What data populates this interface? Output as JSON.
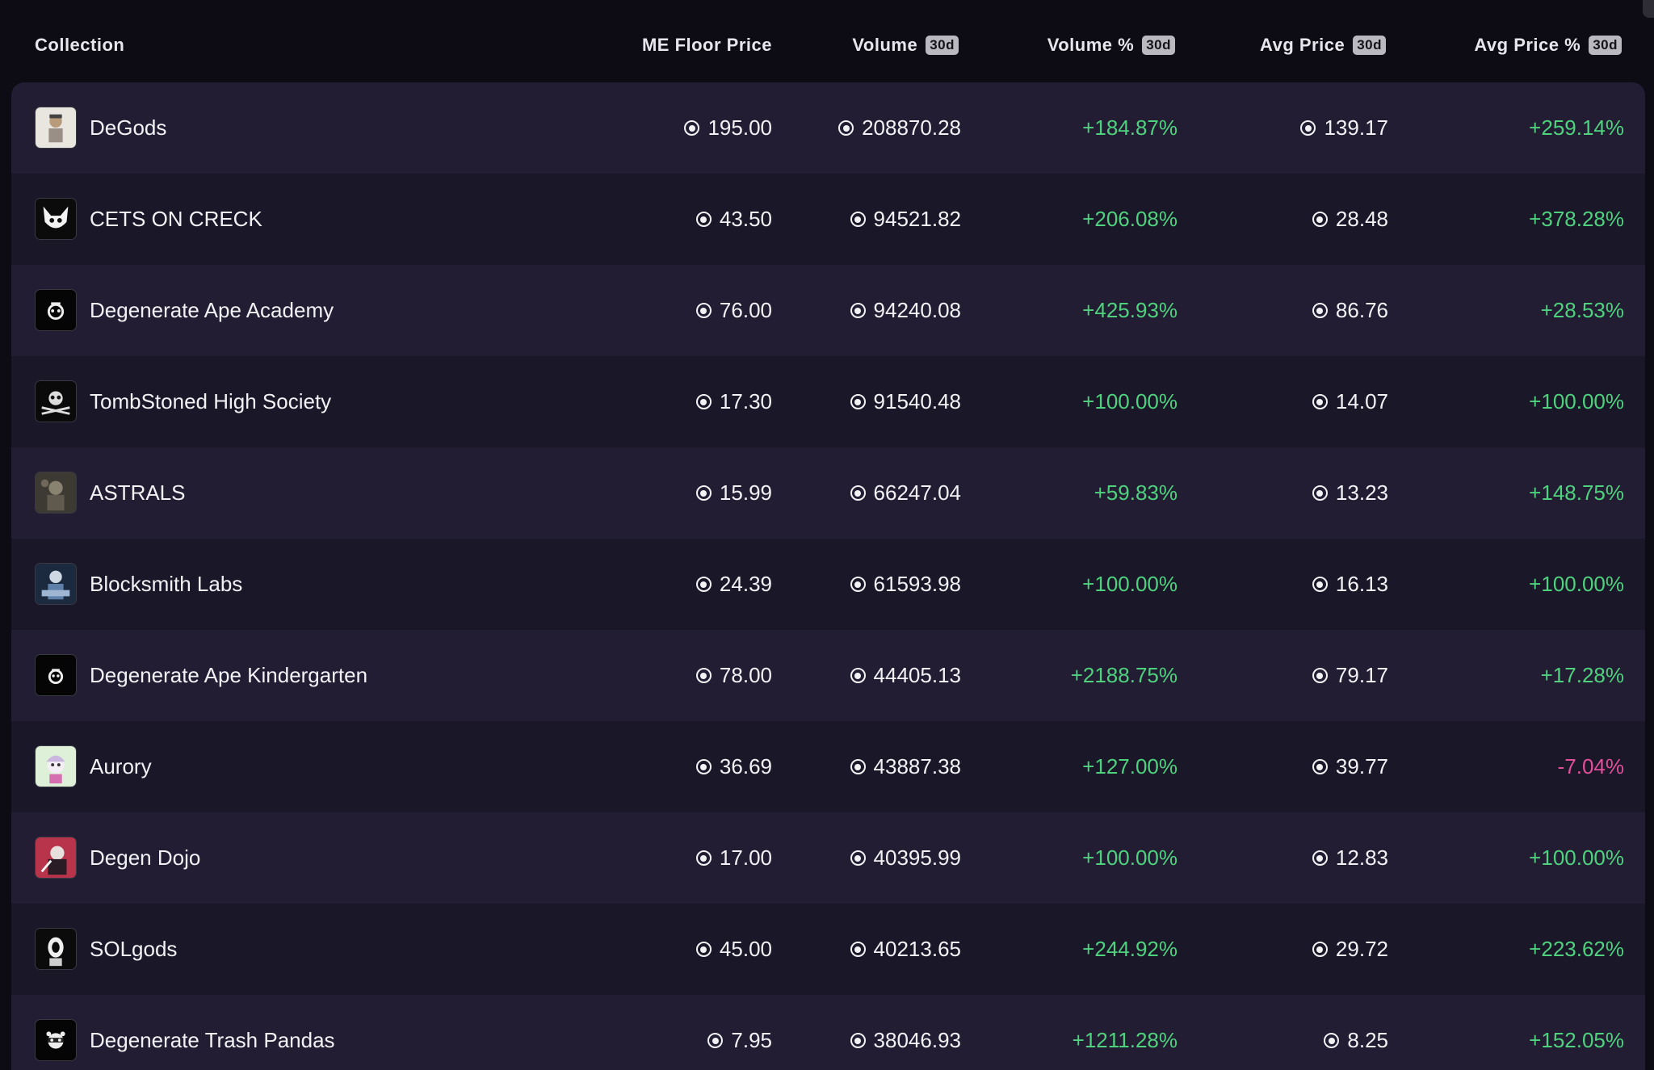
{
  "header": {
    "collection": "Collection",
    "floor": "ME Floor Price",
    "volume": "Volume",
    "volume_pct": "Volume %",
    "avg_price": "Avg Price",
    "avg_price_pct": "Avg Price %",
    "period_badge": "30d"
  },
  "colors": {
    "positive": "#4fd27e",
    "negative": "#e24f9a",
    "row_a": "#221d33",
    "row_b": "#1a1728",
    "background": "#0d0c14"
  },
  "currency_icon": "solana-icon",
  "rows": [
    {
      "name": "DeGods",
      "thumb": "degods-thumbnail",
      "floor": "195.00",
      "volume": "208870.28",
      "volume_pct": "+184.87%",
      "avg_price": "139.17",
      "avg_price_pct": "+259.14%"
    },
    {
      "name": "CETS ON CRECK",
      "thumb": "cets-on-creck-thumbnail",
      "floor": "43.50",
      "volume": "94521.82",
      "volume_pct": "+206.08%",
      "avg_price": "28.48",
      "avg_price_pct": "+378.28%"
    },
    {
      "name": "Degenerate Ape Academy",
      "thumb": "degenerate-ape-academy-thumbnail",
      "floor": "76.00",
      "volume": "94240.08",
      "volume_pct": "+425.93%",
      "avg_price": "86.76",
      "avg_price_pct": "+28.53%"
    },
    {
      "name": "TombStoned High Society",
      "thumb": "tombstoned-thumbnail",
      "floor": "17.30",
      "volume": "91540.48",
      "volume_pct": "+100.00%",
      "avg_price": "14.07",
      "avg_price_pct": "+100.00%"
    },
    {
      "name": "ASTRALS",
      "thumb": "astrals-thumbnail",
      "floor": "15.99",
      "volume": "66247.04",
      "volume_pct": "+59.83%",
      "avg_price": "13.23",
      "avg_price_pct": "+148.75%"
    },
    {
      "name": "Blocksmith Labs",
      "thumb": "blocksmith-labs-thumbnail",
      "floor": "24.39",
      "volume": "61593.98",
      "volume_pct": "+100.00%",
      "avg_price": "16.13",
      "avg_price_pct": "+100.00%"
    },
    {
      "name": "Degenerate Ape Kindergarten",
      "thumb": "degenerate-ape-kindergarten-thumbnail",
      "floor": "78.00",
      "volume": "44405.13",
      "volume_pct": "+2188.75%",
      "avg_price": "79.17",
      "avg_price_pct": "+17.28%"
    },
    {
      "name": "Aurory",
      "thumb": "aurory-thumbnail",
      "floor": "36.69",
      "volume": "43887.38",
      "volume_pct": "+127.00%",
      "avg_price": "39.77",
      "avg_price_pct": "-7.04%"
    },
    {
      "name": "Degen Dojo",
      "thumb": "degen-dojo-thumbnail",
      "floor": "17.00",
      "volume": "40395.99",
      "volume_pct": "+100.00%",
      "avg_price": "12.83",
      "avg_price_pct": "+100.00%"
    },
    {
      "name": "SOLgods",
      "thumb": "solgods-thumbnail",
      "floor": "45.00",
      "volume": "40213.65",
      "volume_pct": "+244.92%",
      "avg_price": "29.72",
      "avg_price_pct": "+223.62%"
    },
    {
      "name": "Degenerate Trash Pandas",
      "thumb": "degenerate-trash-pandas-thumbnail",
      "floor": "7.95",
      "volume": "38046.93",
      "volume_pct": "+1211.28%",
      "avg_price": "8.25",
      "avg_price_pct": "+152.05%"
    }
  ]
}
